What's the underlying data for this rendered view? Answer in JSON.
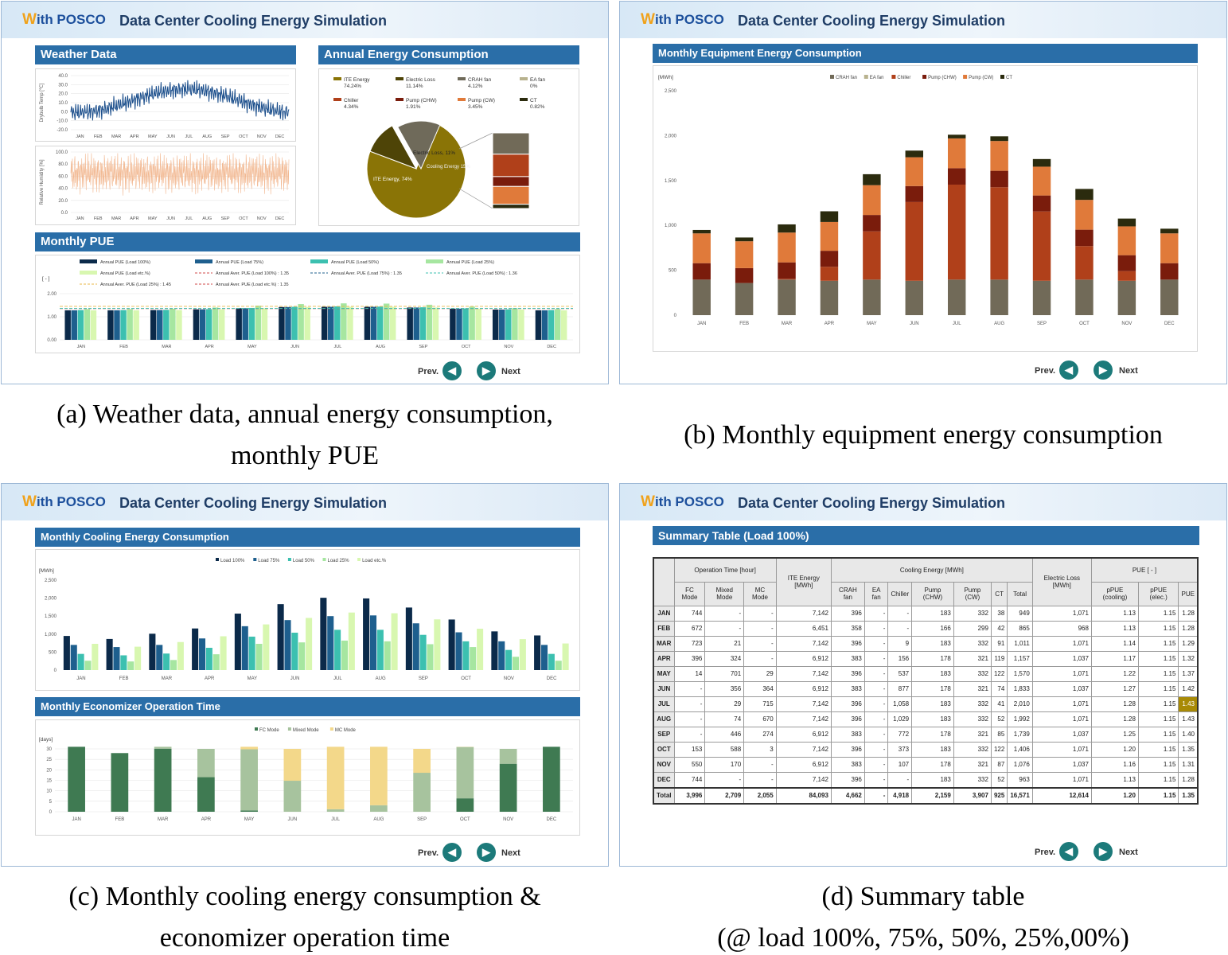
{
  "header": {
    "logo_w": "W",
    "logo_rest": "ith POSCO",
    "title": "Data Center Cooling Energy Simulation"
  },
  "nav": {
    "prev": "Prev.",
    "next": "Next",
    "prev_icon": "arrow-left-icon",
    "next_icon": "arrow-right-icon"
  },
  "months": [
    "JAN",
    "FEB",
    "MAR",
    "APR",
    "MAY",
    "JUN",
    "JUL",
    "AUG",
    "SEP",
    "OCT",
    "NOV",
    "DEC"
  ],
  "panel_a": {
    "weather_title": "Weather Data",
    "annual_title": "Annual Energy Consumption",
    "pue_title": "Monthly PUE",
    "temp_ylabel": "Drybulb Temp [℃]",
    "temp_ticks": [
      "40.0",
      "30.0",
      "20.0",
      "10.0",
      "0.0",
      "-10.0",
      "-20.0"
    ],
    "hum_ylabel": "Relative Humidity [%]",
    "hum_ticks": [
      "100.0",
      "80.0",
      "60.0",
      "40.0",
      "20.0",
      "0.0"
    ],
    "pie_legend": [
      {
        "label": "ITE Energy",
        "value": "74.24%",
        "color": "#8a7406"
      },
      {
        "label": "Electric Loss",
        "value": "11.14%",
        "color": "#4e4407"
      },
      {
        "label": "CRAH fan",
        "value": "4.12%",
        "color": "#6f6a5a"
      },
      {
        "label": "EA fan",
        "value": "0%",
        "color": "#b8b28e"
      },
      {
        "label": "Chiller",
        "value": "4.34%",
        "color": "#b0401a"
      },
      {
        "label": "Pump (CHW)",
        "value": "1.91%",
        "color": "#7a1c0c"
      },
      {
        "label": "Pump (CW)",
        "value": "3.45%",
        "color": "#e07a3a"
      },
      {
        "label": "CT",
        "value": "0.82%",
        "color": "#2b2b0e"
      }
    ],
    "pie_labels": [
      "Electric Loss, 11%",
      "Cooling Energy 15%",
      "ITE Energy, 74%"
    ],
    "pue_unit": "[ - ]",
    "pue_ticks": [
      "2.00",
      "1.00",
      "0.00"
    ],
    "pue_legend": [
      {
        "label": "Annual PUE (Load 100%)",
        "color": "#0b2a4a",
        "kind": "bar"
      },
      {
        "label": "Annual PUE (Load 75%)",
        "color": "#1e5f8e",
        "kind": "bar"
      },
      {
        "label": "Annual PUE (Load 50%)",
        "color": "#3cc0b0",
        "kind": "bar"
      },
      {
        "label": "Annual PUE (Load 25%)",
        "color": "#a6e6a0",
        "kind": "bar"
      },
      {
        "label": "Annual PUE (Load etc.%)",
        "color": "#d8f7b0",
        "kind": "bar"
      },
      {
        "label": "Annual Aver. PUE (Load 100%) : 1.35",
        "color": "#d24a4a",
        "kind": "dash"
      },
      {
        "label": "Annual Aver. PUE (Load 75%) : 1.35",
        "color": "#1e5f8e",
        "kind": "dash"
      },
      {
        "label": "Annual Aver. PUE (Load 50%) : 1.36",
        "color": "#3cc0b0",
        "kind": "dash"
      },
      {
        "label": "Annual Aver. PUE (Load 25%) : 1.45",
        "color": "#e8b84a",
        "kind": "dash"
      },
      {
        "label": "Annual Aver. PUE (Load etc.%) : 1.35",
        "color": "#d24a4a",
        "kind": "dash"
      }
    ]
  },
  "chart_data": [
    {
      "type": "bar",
      "title": "Monthly PUE",
      "ylabel": "[ - ]",
      "ylim": [
        0,
        2
      ],
      "categories": [
        "JAN",
        "FEB",
        "MAR",
        "APR",
        "MAY",
        "JUN",
        "JUL",
        "AUG",
        "SEP",
        "OCT",
        "NOV",
        "DEC"
      ],
      "series": [
        {
          "name": "Annual PUE (Load 100%)",
          "values": [
            1.28,
            1.28,
            1.29,
            1.32,
            1.37,
            1.42,
            1.43,
            1.43,
            1.4,
            1.35,
            1.31,
            1.28
          ]
        },
        {
          "name": "Annual PUE (Load 75%)",
          "values": [
            1.28,
            1.28,
            1.29,
            1.32,
            1.37,
            1.42,
            1.43,
            1.43,
            1.4,
            1.35,
            1.31,
            1.28
          ]
        },
        {
          "name": "Annual PUE (Load 50%)",
          "values": [
            1.29,
            1.29,
            1.3,
            1.33,
            1.38,
            1.43,
            1.45,
            1.44,
            1.41,
            1.36,
            1.32,
            1.29
          ]
        },
        {
          "name": "Annual PUE (Load 25%)",
          "values": [
            1.33,
            1.33,
            1.35,
            1.4,
            1.48,
            1.55,
            1.58,
            1.57,
            1.52,
            1.44,
            1.37,
            1.33
          ]
        },
        {
          "name": "Annual PUE (Load etc.%)",
          "values": [
            1.28,
            1.28,
            1.29,
            1.32,
            1.37,
            1.42,
            1.43,
            1.43,
            1.4,
            1.35,
            1.31,
            1.28
          ]
        }
      ]
    },
    {
      "type": "bar",
      "title": "Monthly Equipment Energy Consumption",
      "ylabel": "[MWh]",
      "ylim": [
        0,
        2500
      ],
      "stacked": true,
      "categories": [
        "JAN",
        "FEB",
        "MAR",
        "APR",
        "MAY",
        "JUN",
        "JUL",
        "AUG",
        "SEP",
        "OCT",
        "NOV",
        "DEC"
      ],
      "series": [
        {
          "name": "CRAH fan",
          "color": "#716a58",
          "values": [
            396,
            358,
            396,
            383,
            396,
            383,
            396,
            396,
            383,
            396,
            383,
            396
          ]
        },
        {
          "name": "EA fan",
          "color": "#b8b28e",
          "values": [
            0,
            0,
            0,
            0,
            0,
            0,
            0,
            0,
            0,
            0,
            0,
            0
          ]
        },
        {
          "name": "Chiller",
          "color": "#b0401a",
          "values": [
            0,
            0,
            9,
            156,
            537,
            877,
            1058,
            1029,
            772,
            373,
            107,
            0
          ]
        },
        {
          "name": "Pump (CHW)",
          "color": "#7a1c0c",
          "values": [
            183,
            166,
            183,
            178,
            183,
            178,
            183,
            183,
            178,
            183,
            178,
            183
          ]
        },
        {
          "name": "Pump (CW)",
          "color": "#e07a3a",
          "values": [
            332,
            299,
            332,
            321,
            332,
            321,
            332,
            332,
            321,
            332,
            321,
            332
          ]
        },
        {
          "name": "CT",
          "color": "#2b2b0e",
          "values": [
            38,
            42,
            91,
            119,
            122,
            74,
            41,
            52,
            85,
            122,
            87,
            52
          ]
        }
      ]
    },
    {
      "type": "bar",
      "title": "Monthly Cooling Energy Consumption",
      "ylabel": "[MWh]",
      "ylim": [
        0,
        2500
      ],
      "categories": [
        "JAN",
        "FEB",
        "MAR",
        "APR",
        "MAY",
        "JUN",
        "JUL",
        "AUG",
        "SEP",
        "OCT",
        "NOV",
        "DEC"
      ],
      "series": [
        {
          "name": "Load 100%",
          "color": "#0b2a4a",
          "values": [
            949,
            865,
            1011,
            1157,
            1570,
            1833,
            2010,
            1992,
            1739,
            1406,
            1076,
            963
          ]
        },
        {
          "name": "Load 75%",
          "color": "#1e5f8e",
          "values": [
            700,
            640,
            700,
            880,
            1220,
            1390,
            1500,
            1520,
            1300,
            1050,
            800,
            700
          ]
        },
        {
          "name": "Load 50%",
          "color": "#3cc0b0",
          "values": [
            450,
            410,
            460,
            620,
            930,
            1040,
            1120,
            1120,
            980,
            800,
            560,
            450
          ]
        },
        {
          "name": "Load 25%",
          "color": "#a6e6a0",
          "values": [
            260,
            240,
            280,
            440,
            730,
            770,
            820,
            800,
            720,
            640,
            370,
            260
          ]
        },
        {
          "name": "Load etc.%",
          "color": "#d8f7b0",
          "values": [
            730,
            650,
            780,
            940,
            1270,
            1450,
            1600,
            1580,
            1410,
            1150,
            860,
            740
          ]
        }
      ]
    },
    {
      "type": "bar",
      "title": "Monthly Economizer Operation Time",
      "ylabel": "[days]",
      "ylim": [
        0,
        30
      ],
      "stacked": true,
      "categories": [
        "JAN",
        "FEB",
        "MAR",
        "APR",
        "MAY",
        "JUN",
        "JUL",
        "AUG",
        "SEP",
        "OCT",
        "NOV",
        "DEC"
      ],
      "series": [
        {
          "name": "FC Mode",
          "color": "#3f7a52",
          "values": [
            31,
            28,
            30.1,
            16.5,
            0.6,
            0,
            0,
            0,
            0,
            6.4,
            22.9,
            31
          ]
        },
        {
          "name": "Mixed Mode",
          "color": "#a7c39e",
          "values": [
            0,
            0,
            0.9,
            13.5,
            29.2,
            14.8,
            1.2,
            3.1,
            18.6,
            24.5,
            7.1,
            0
          ]
        },
        {
          "name": "MC Mode",
          "color": "#f3d88a",
          "values": [
            0,
            0,
            0,
            0,
            1.2,
            15.2,
            29.8,
            27.9,
            11.4,
            0.1,
            0,
            0
          ]
        }
      ]
    }
  ],
  "panel_b": {
    "title": "Monthly Equipment Energy Consumption",
    "unit": "[MWh]",
    "ticks": [
      "2,500",
      "2,000",
      "1,500",
      "1,000",
      "500",
      "0"
    ]
  },
  "panel_c": {
    "cool_title": "Monthly Cooling Energy Consumption",
    "cool_unit": "[MWh]",
    "cool_ticks": [
      "2,500",
      "2,000",
      "1,500",
      "1,000",
      "500",
      "0"
    ],
    "econ_title": "Monthly Economizer Operation Time",
    "econ_unit": "[days]",
    "econ_ticks": [
      "30",
      "25",
      "20",
      "15",
      "10",
      "5",
      "0"
    ]
  },
  "panel_d": {
    "title": "Summary Table (Load 100%)",
    "groups": {
      "op_time": "Operation Time [hour]",
      "ite": "ITE Energy [MWh]",
      "cooling": "Cooling Energy [MWh]",
      "eloss": "Electric Loss [MWh]",
      "pue": "PUE [ - ]"
    },
    "cols": [
      "FC Mode",
      "Mixed Mode",
      "MC Mode",
      "CRAH fan",
      "EA fan",
      "Chiller",
      "Pump (CHW)",
      "Pump (CW)",
      "CT",
      "Total",
      "pPUE (cooling)",
      "pPUE (elec.)",
      "PUE"
    ],
    "rows": [
      {
        "m": "JAN",
        "v": [
          "744",
          "-",
          "-",
          "7,142",
          "396",
          "-",
          "-",
          "183",
          "332",
          "38",
          "949",
          "1,071",
          "1.13",
          "1.15",
          "1.28"
        ]
      },
      {
        "m": "FEB",
        "v": [
          "672",
          "-",
          "-",
          "6,451",
          "358",
          "-",
          "-",
          "166",
          "299",
          "42",
          "865",
          "968",
          "1.13",
          "1.15",
          "1.28"
        ]
      },
      {
        "m": "MAR",
        "v": [
          "723",
          "21",
          "-",
          "7,142",
          "396",
          "-",
          "9",
          "183",
          "332",
          "91",
          "1,011",
          "1,071",
          "1.14",
          "1.15",
          "1.29"
        ]
      },
      {
        "m": "APR",
        "v": [
          "396",
          "324",
          "-",
          "6,912",
          "383",
          "-",
          "156",
          "178",
          "321",
          "119",
          "1,157",
          "1,037",
          "1.17",
          "1.15",
          "1.32"
        ]
      },
      {
        "m": "MAY",
        "v": [
          "14",
          "701",
          "29",
          "7,142",
          "396",
          "-",
          "537",
          "183",
          "332",
          "122",
          "1,570",
          "1,071",
          "1.22",
          "1.15",
          "1.37"
        ]
      },
      {
        "m": "JUN",
        "v": [
          "-",
          "356",
          "364",
          "6,912",
          "383",
          "-",
          "877",
          "178",
          "321",
          "74",
          "1,833",
          "1,037",
          "1.27",
          "1.15",
          "1.42"
        ]
      },
      {
        "m": "JUL",
        "v": [
          "-",
          "29",
          "715",
          "7,142",
          "396",
          "-",
          "1,058",
          "183",
          "332",
          "41",
          "2,010",
          "1,071",
          "1.28",
          "1.15",
          "1.43"
        ]
      },
      {
        "m": "AUG",
        "v": [
          "-",
          "74",
          "670",
          "7,142",
          "396",
          "-",
          "1,029",
          "183",
          "332",
          "52",
          "1,992",
          "1,071",
          "1.28",
          "1.15",
          "1.43"
        ]
      },
      {
        "m": "SEP",
        "v": [
          "-",
          "446",
          "274",
          "6,912",
          "383",
          "-",
          "772",
          "178",
          "321",
          "85",
          "1,739",
          "1,037",
          "1.25",
          "1.15",
          "1.40"
        ]
      },
      {
        "m": "OCT",
        "v": [
          "153",
          "588",
          "3",
          "7,142",
          "396",
          "-",
          "373",
          "183",
          "332",
          "122",
          "1,406",
          "1,071",
          "1.20",
          "1.15",
          "1.35"
        ]
      },
      {
        "m": "NOV",
        "v": [
          "550",
          "170",
          "-",
          "6,912",
          "383",
          "-",
          "107",
          "178",
          "321",
          "87",
          "1,076",
          "1,037",
          "1.16",
          "1.15",
          "1.31"
        ]
      },
      {
        "m": "DEC",
        "v": [
          "744",
          "-",
          "-",
          "7,142",
          "396",
          "-",
          "-",
          "183",
          "332",
          "52",
          "963",
          "1,071",
          "1.13",
          "1.15",
          "1.28"
        ]
      }
    ],
    "total": {
      "m": "Total",
      "v": [
        "3,996",
        "2,709",
        "2,055",
        "84,093",
        "4,662",
        "-",
        "4,918",
        "2,159",
        "3,907",
        "925",
        "16,571",
        "12,614",
        "1.20",
        "1.15",
        "1.35"
      ]
    }
  },
  "captions": {
    "a": [
      "(a) Weather data, annual energy consumption,",
      "monthly PUE"
    ],
    "b": [
      "(b) Monthly equipment energy consumption"
    ],
    "c": [
      "(c) Monthly cooling energy consumption &",
      "economizer operation time"
    ],
    "d": [
      "(d) Summary table",
      "(@ load 100%, 75%, 50%, 25%,00%)"
    ]
  }
}
